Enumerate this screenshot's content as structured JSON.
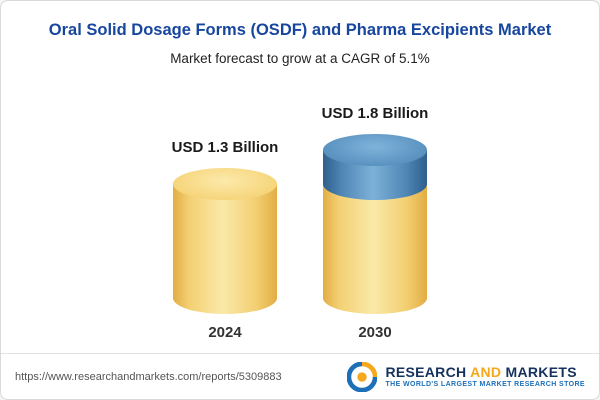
{
  "header": {
    "title": "Oral Solid Dosage Forms (OSDF) and Pharma Excipients Market",
    "subtitle": "Market forecast to grow at a CAGR of 5.1%"
  },
  "chart_data": {
    "type": "bar",
    "title": "Oral Solid Dosage Forms (OSDF) and Pharma Excipients Market",
    "subtitle": "Market forecast to grow at a CAGR of 5.1%",
    "cagr": "5.1%",
    "unit": "USD Billion",
    "categories": [
      "2024",
      "2030"
    ],
    "values": [
      1.3,
      1.8
    ],
    "value_labels": [
      "USD 1.3 Billion",
      "USD 1.8 Billion"
    ],
    "growth_segment": {
      "category": "2030",
      "value": 0.5,
      "color": "#4E86B4"
    },
    "colors": {
      "base": "#F2CC66",
      "growth": "#4E86B4",
      "title_text": "#17469E"
    },
    "legend": false,
    "gridlines": false
  },
  "footer": {
    "url": "https://www.researchandmarkets.com/reports/5309883",
    "brand": {
      "part1": "RESEARCH",
      "part2": "AND",
      "part3": "MARKETS",
      "tagline": "THE WORLD'S LARGEST MARKET RESEARCH STORE"
    }
  }
}
